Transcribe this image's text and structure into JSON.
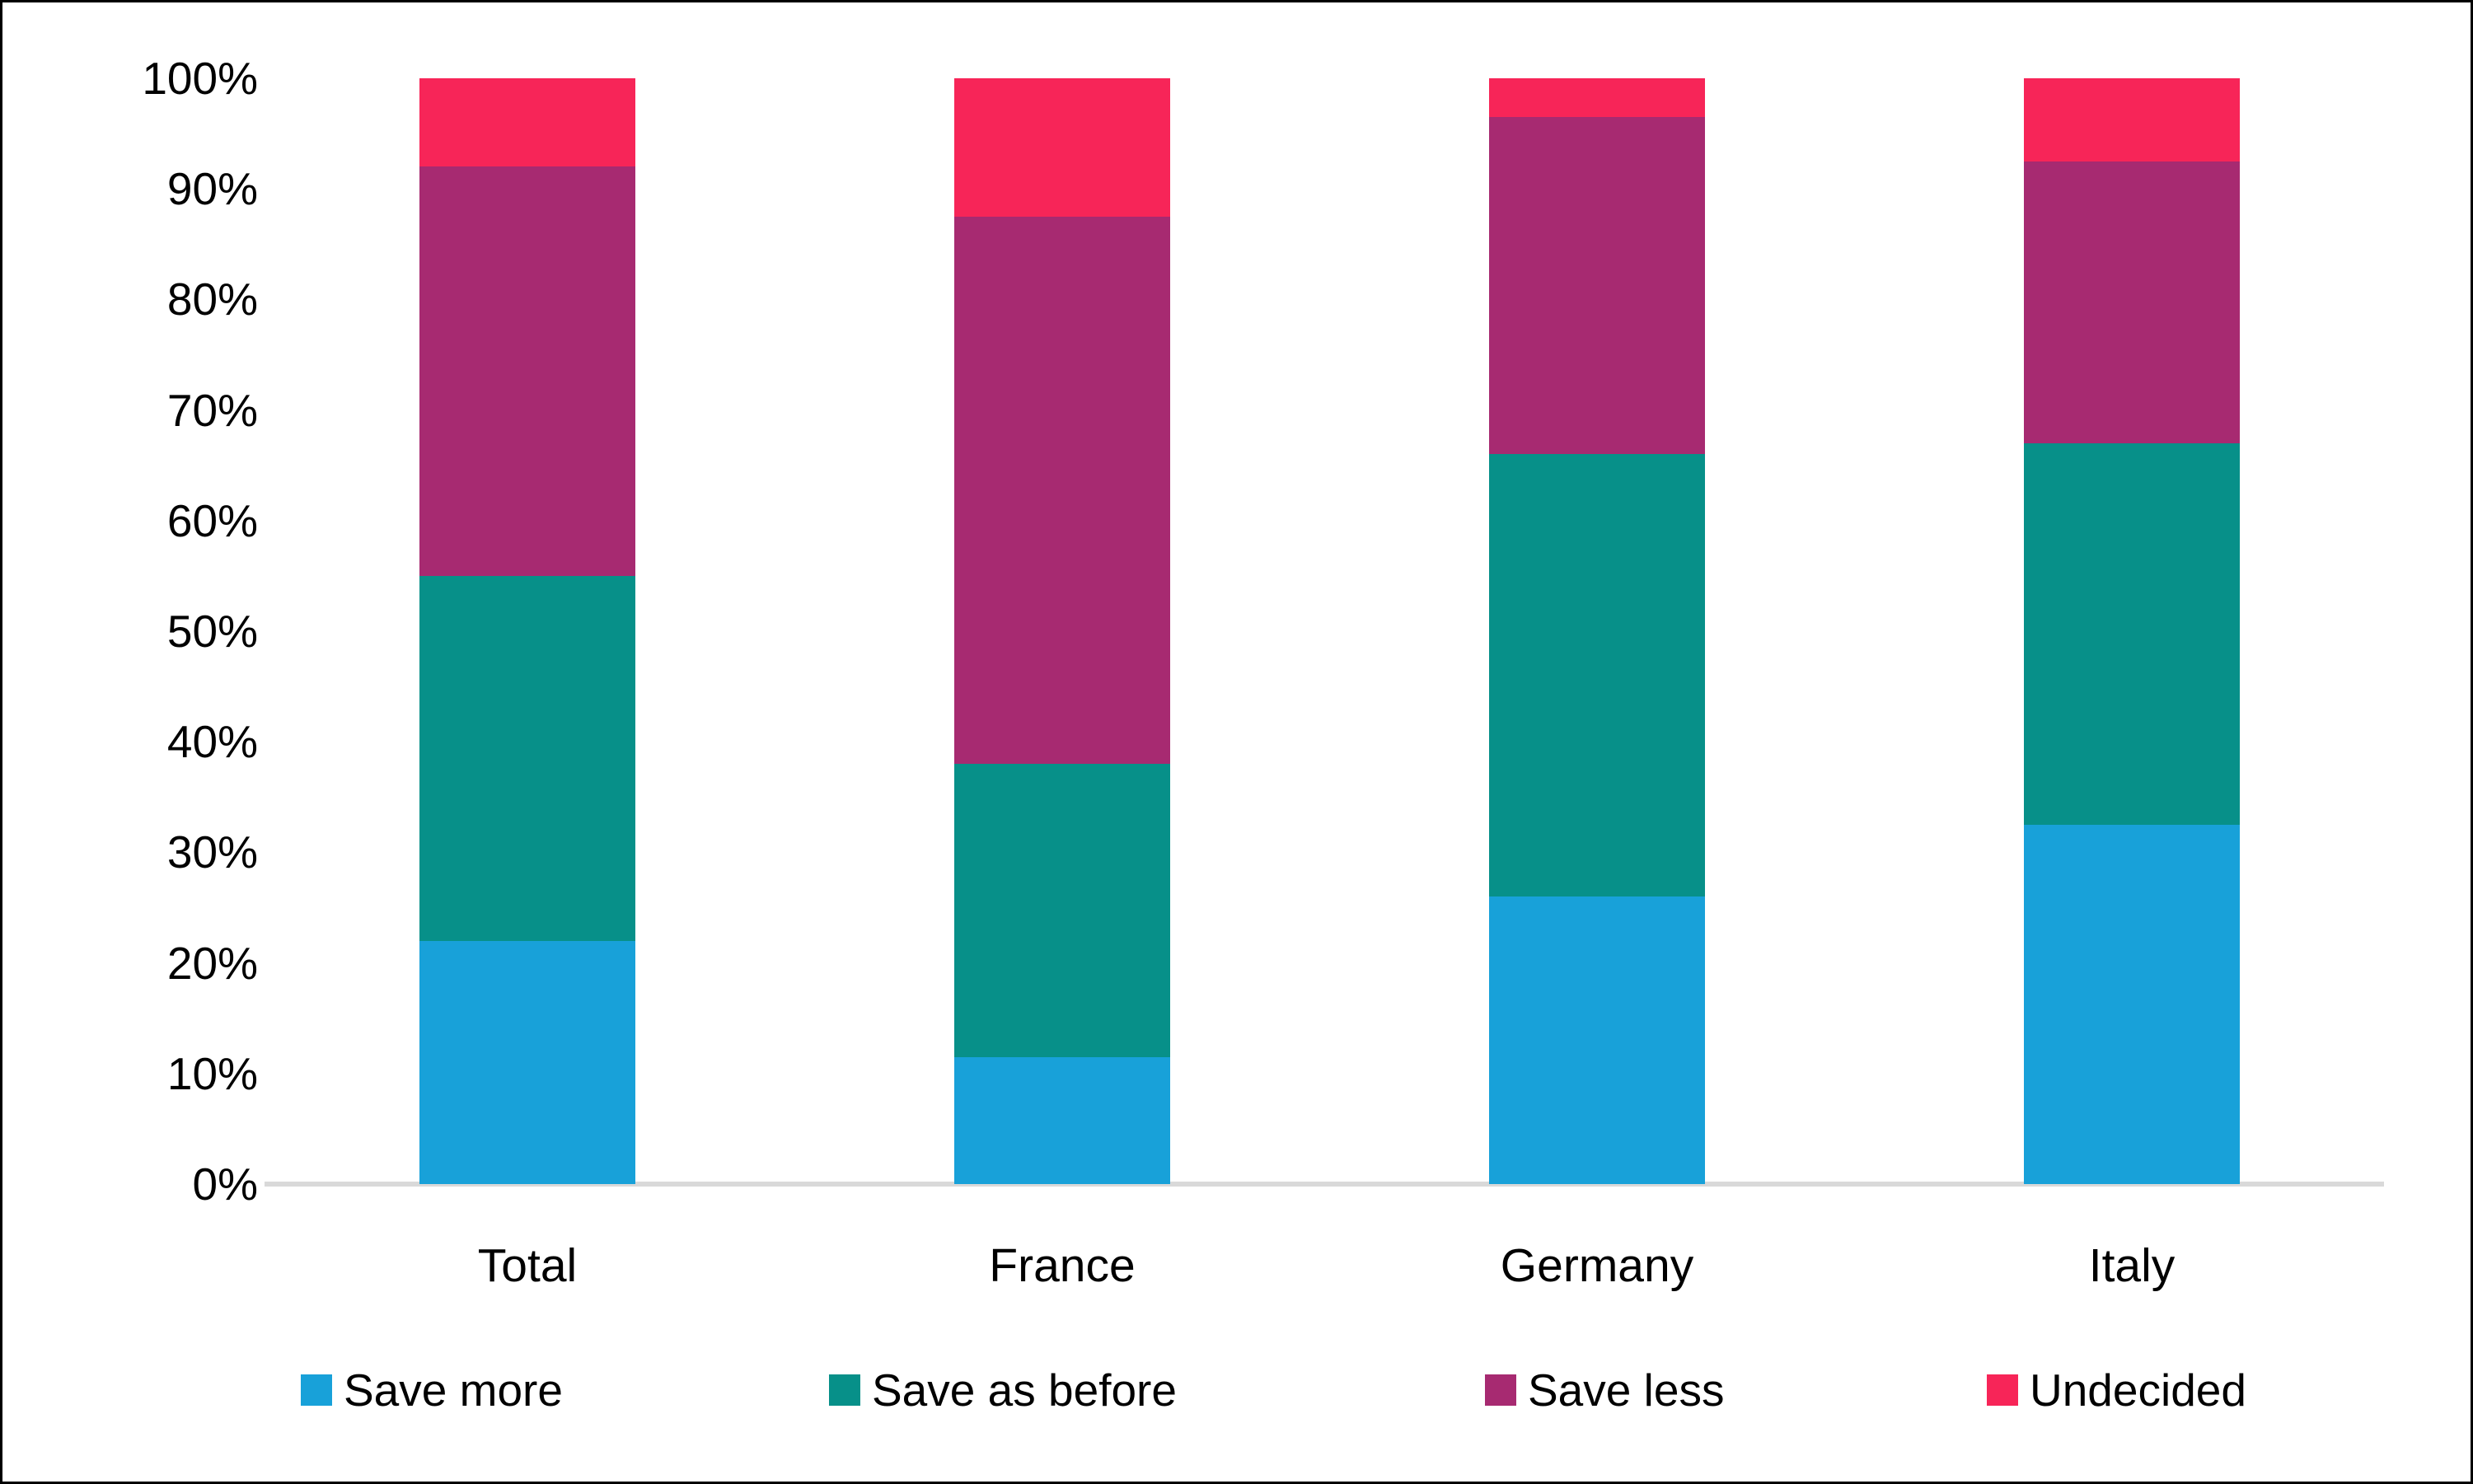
{
  "chart_data": {
    "type": "bar",
    "stacked": true,
    "percent_stacked": true,
    "title": "",
    "xlabel": "",
    "ylabel": "",
    "categories": [
      "Total",
      "France",
      "Germany",
      "Italy"
    ],
    "series": [
      {
        "name": "Save more",
        "color": "#18A1D9",
        "values": [
          22,
          11.5,
          26,
          32.5
        ]
      },
      {
        "name": "Save as before",
        "color": "#079089",
        "values": [
          33,
          26.5,
          40,
          34.5
        ]
      },
      {
        "name": "Save less",
        "color": "#A72A71",
        "values": [
          37,
          49.5,
          30.5,
          25.5
        ]
      },
      {
        "name": "Undecided",
        "color": "#F72558",
        "values": [
          8,
          12.5,
          3.5,
          7.5
        ]
      }
    ],
    "y_axis": {
      "ticks": [
        "0%",
        "10%",
        "20%",
        "30%",
        "40%",
        "50%",
        "60%",
        "70%",
        "80%",
        "90%",
        "100%"
      ],
      "min": 0,
      "max": 100,
      "gridlines": false
    },
    "axis_line_color": "#D9D9D9",
    "legend_position": "bottom",
    "legend": [
      "Save more",
      "Save as before",
      "Save less",
      "Undecided"
    ]
  }
}
